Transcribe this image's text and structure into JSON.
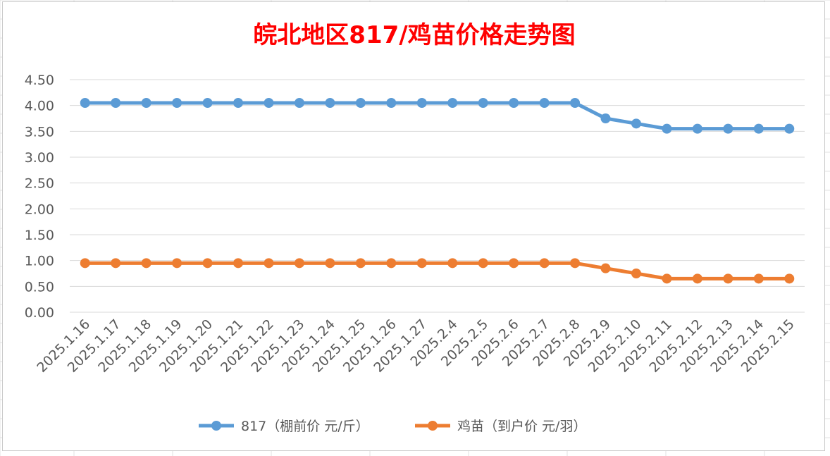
{
  "chart_data": {
    "type": "line",
    "title": "皖北地区817/鸡苗价格走势图",
    "categories": [
      "2025.1.16",
      "2025.1.17",
      "2025.1.18",
      "2025.1.19",
      "2025.1.20",
      "2025.1.21",
      "2025.1.22",
      "2025.1.23",
      "2025.1.24",
      "2025.1.25",
      "2025.1.26",
      "2025.1.27",
      "2025.2.4",
      "2025.2.5",
      "2025.2.6",
      "2025.2.7",
      "2025.2.8",
      "2025.2.9",
      "2025.2.10",
      "2025.2.11",
      "2025.2.12",
      "2025.2.13",
      "2025.2.14",
      "2025.2.15"
    ],
    "series": [
      {
        "name": "817（棚前价 元/斤）",
        "color": "#5b9bd5",
        "values": [
          4.05,
          4.05,
          4.05,
          4.05,
          4.05,
          4.05,
          4.05,
          4.05,
          4.05,
          4.05,
          4.05,
          4.05,
          4.05,
          4.05,
          4.05,
          4.05,
          4.05,
          3.75,
          3.65,
          3.55,
          3.55,
          3.55,
          3.55,
          3.55
        ]
      },
      {
        "name": "鸡苗（到户价 元/羽）",
        "color": "#ed7d31",
        "values": [
          0.95,
          0.95,
          0.95,
          0.95,
          0.95,
          0.95,
          0.95,
          0.95,
          0.95,
          0.95,
          0.95,
          0.95,
          0.95,
          0.95,
          0.95,
          0.95,
          0.95,
          0.85,
          0.75,
          0.65,
          0.65,
          0.65,
          0.65,
          0.65
        ]
      }
    ],
    "yticks": [
      "0.00",
      "0.50",
      "1.00",
      "1.50",
      "2.00",
      "2.50",
      "3.00",
      "3.50",
      "4.00",
      "4.50"
    ],
    "ylim": [
      0,
      4.5
    ],
    "grid": true,
    "legend": "bottom",
    "title_color": "#ff0000"
  }
}
